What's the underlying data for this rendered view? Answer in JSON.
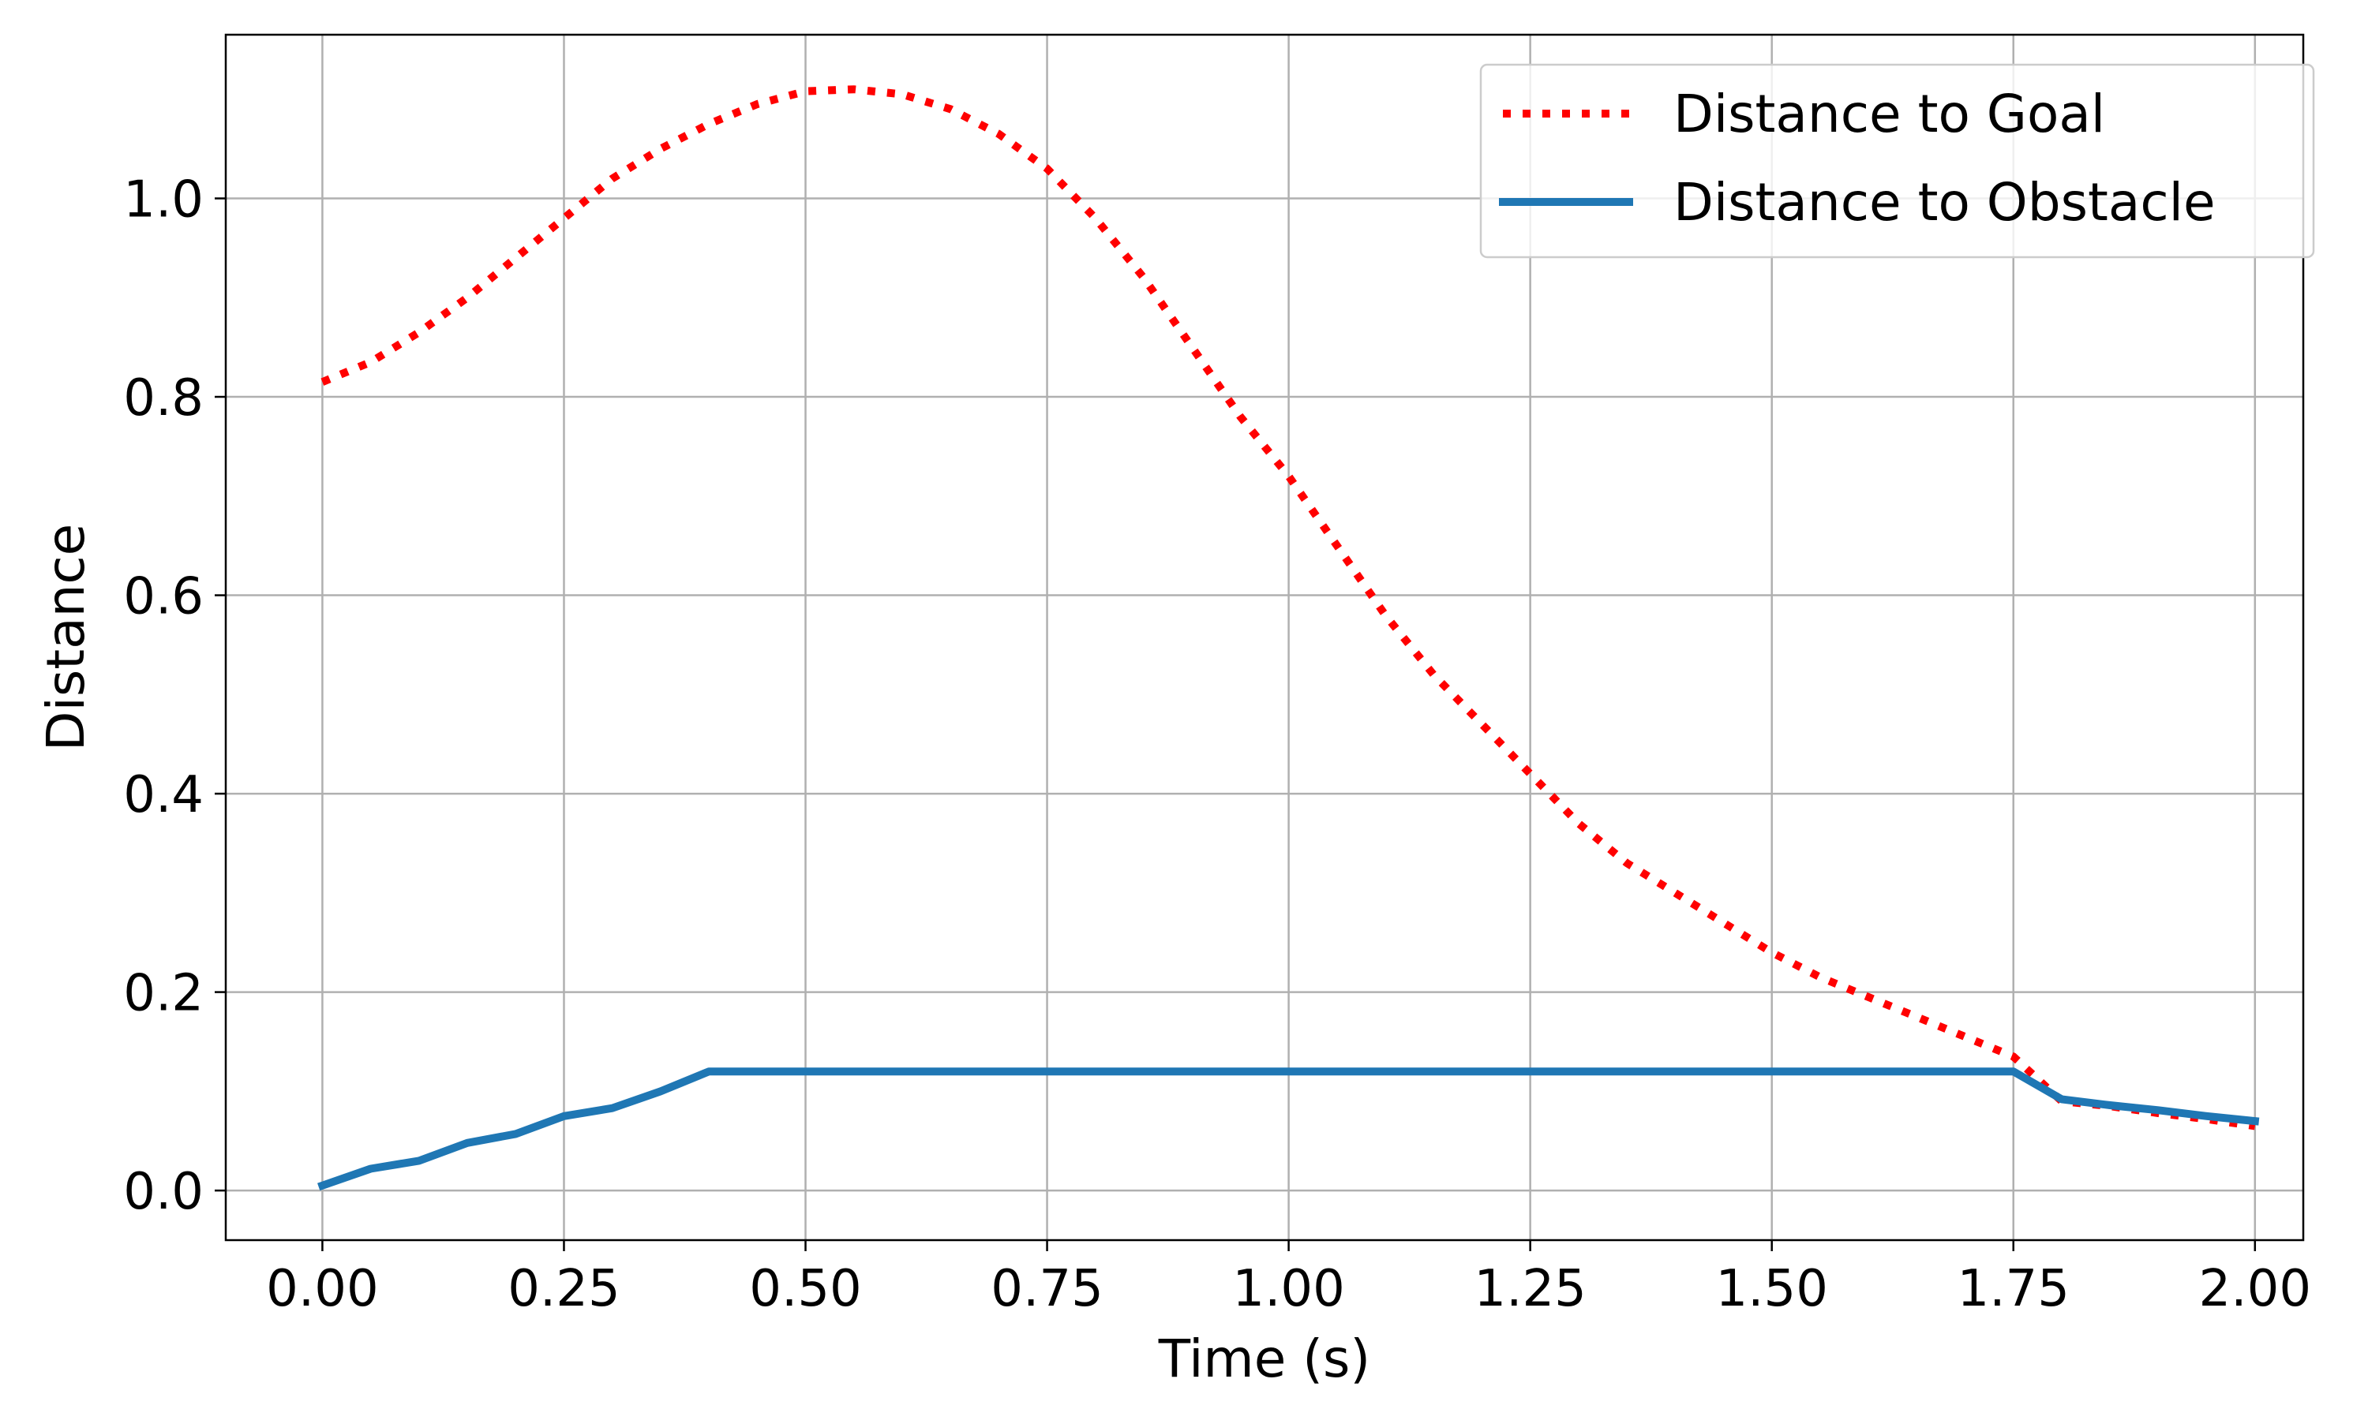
{
  "chart_data": {
    "type": "line",
    "title": "",
    "xlabel": "Time (s)",
    "ylabel": "Distance",
    "xlim": [
      -0.1,
      2.05
    ],
    "ylim": [
      -0.05,
      1.165
    ],
    "xticks": [
      "0.00",
      "0.25",
      "0.50",
      "0.75",
      "1.00",
      "1.25",
      "1.50",
      "1.75",
      "2.00"
    ],
    "xtick_values": [
      0,
      0.25,
      0.5,
      0.75,
      1.0,
      1.25,
      1.5,
      1.75,
      2.0
    ],
    "yticks": [
      "0.0",
      "0.2",
      "0.4",
      "0.6",
      "0.8",
      "1.0"
    ],
    "ytick_values": [
      0,
      0.2,
      0.4,
      0.6,
      0.8,
      1.0
    ],
    "grid": true,
    "legend_position": "top-right",
    "series": [
      {
        "name": "Distance to Goal",
        "color": "#ff0000",
        "style": "dotted",
        "x": [
          0,
          0.05,
          0.1,
          0.15,
          0.2,
          0.25,
          0.3,
          0.35,
          0.4,
          0.45,
          0.5,
          0.55,
          0.6,
          0.65,
          0.7,
          0.75,
          0.8,
          0.85,
          0.9,
          0.95,
          1.0,
          1.05,
          1.1,
          1.15,
          1.2,
          1.25,
          1.3,
          1.35,
          1.4,
          1.45,
          1.5,
          1.55,
          1.6,
          1.65,
          1.7,
          1.75,
          1.8,
          1.85,
          1.9,
          1.95,
          2.0
        ],
        "y": [
          0.815,
          0.835,
          0.865,
          0.9,
          0.94,
          0.98,
          1.02,
          1.05,
          1.075,
          1.095,
          1.108,
          1.11,
          1.105,
          1.09,
          1.065,
          1.03,
          0.98,
          0.92,
          0.85,
          0.78,
          0.72,
          0.65,
          0.58,
          0.52,
          0.47,
          0.42,
          0.37,
          0.33,
          0.3,
          0.27,
          0.24,
          0.215,
          0.195,
          0.175,
          0.155,
          0.135,
          0.09,
          0.085,
          0.078,
          0.072,
          0.065
        ]
      },
      {
        "name": "Distance to Obstacle",
        "color": "#1f77b4",
        "style": "solid",
        "x": [
          0,
          0.05,
          0.1,
          0.15,
          0.2,
          0.25,
          0.3,
          0.35,
          0.4,
          0.5,
          0.75,
          1.0,
          1.25,
          1.5,
          1.75,
          1.8,
          1.85,
          1.9,
          1.95,
          2.0
        ],
        "y": [
          0.005,
          0.022,
          0.03,
          0.048,
          0.057,
          0.075,
          0.083,
          0.1,
          0.12,
          0.12,
          0.12,
          0.12,
          0.12,
          0.12,
          0.12,
          0.092,
          0.086,
          0.081,
          0.075,
          0.07
        ]
      }
    ]
  }
}
